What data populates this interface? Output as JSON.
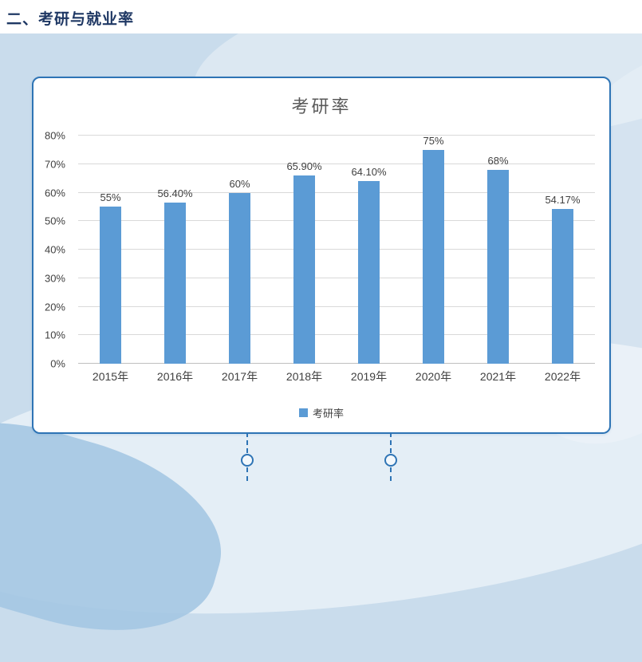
{
  "header": {
    "title": "二、考研与就业率"
  },
  "colors": {
    "accent": "#2e74b5",
    "bar": "#5b9bd5",
    "header_text": "#1f3864",
    "background": "#c9dcec"
  },
  "chart_data": {
    "type": "bar",
    "title": "考研率",
    "categories": [
      "2015年",
      "2016年",
      "2017年",
      "2018年",
      "2019年",
      "2020年",
      "2021年",
      "2022年"
    ],
    "values": [
      55,
      56.4,
      60,
      65.9,
      64.1,
      75,
      68,
      54.17
    ],
    "data_labels": [
      "55%",
      "56.40%",
      "60%",
      "65.90%",
      "64.10%",
      "75%",
      "68%",
      "54.17%"
    ],
    "xlabel": "",
    "ylabel": "",
    "ylim": [
      0,
      80
    ],
    "ytick_labels": [
      "0%",
      "10%",
      "20%",
      "30%",
      "40%",
      "50%",
      "60%",
      "70%",
      "80%"
    ],
    "grid": true,
    "legend_position": "bottom",
    "legend": [
      {
        "label": "考研率",
        "color": "#5b9bd5"
      }
    ]
  }
}
